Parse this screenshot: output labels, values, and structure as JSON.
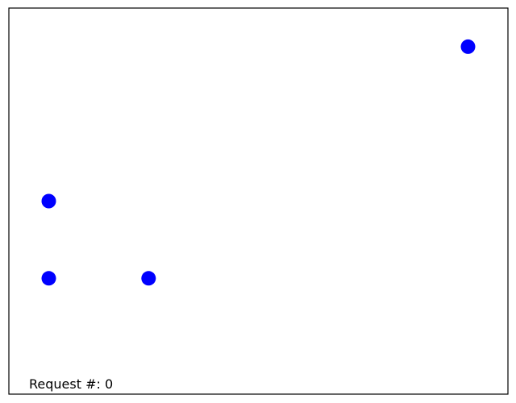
{
  "chart_data": {
    "type": "scatter",
    "title": "",
    "xlabel": "",
    "ylabel": "",
    "xlim": [
      0,
      1
    ],
    "ylim": [
      0,
      1
    ],
    "grid": false,
    "axis_ticks": false,
    "marker_color": "#0000ff",
    "points": [
      {
        "x": 0.08,
        "y": 0.3
      },
      {
        "x": 0.08,
        "y": 0.5
      },
      {
        "x": 0.28,
        "y": 0.3
      },
      {
        "x": 0.92,
        "y": 0.9
      }
    ]
  },
  "annotation": {
    "label": "Request #: 0"
  }
}
